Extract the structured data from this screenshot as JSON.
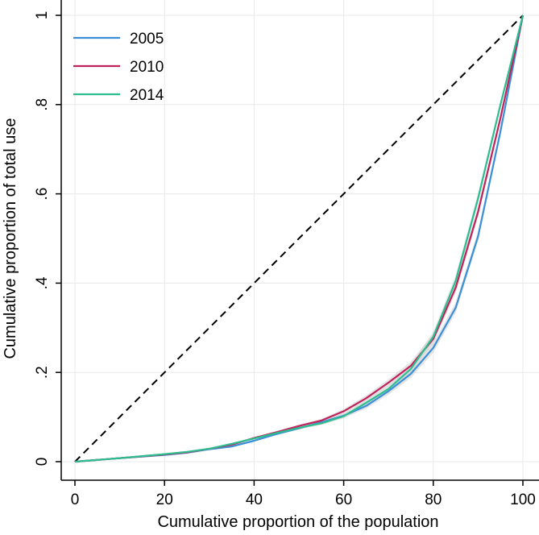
{
  "chart_data": {
    "type": "line",
    "title": "",
    "xlabel": "Cumulative proportion of the population",
    "ylabel": "Cumulative proportion of total use",
    "xlim": [
      0,
      100
    ],
    "ylim": [
      0,
      1
    ],
    "xticks": [
      0,
      20,
      40,
      60,
      80,
      100
    ],
    "xtick_labels": [
      "0",
      "20",
      "40",
      "60",
      "80",
      "100"
    ],
    "yticks": [
      0,
      0.2,
      0.4,
      0.6,
      0.8,
      1
    ],
    "ytick_labels": [
      "0",
      ".2",
      ".4",
      ".6",
      ".8",
      "1"
    ],
    "grid": true,
    "legend_position": "top-left",
    "equality_line": {
      "x": [
        0,
        100
      ],
      "y": [
        0,
        1
      ],
      "color": "#000000",
      "style": "dashed"
    },
    "confidence_band_color": "#cfcfcf",
    "series": [
      {
        "name": "2005",
        "color": "#3a8fd8",
        "x": [
          0,
          10,
          20,
          25,
          30,
          35,
          40,
          45,
          50,
          55,
          60,
          65,
          70,
          75,
          80,
          85,
          90,
          95,
          100
        ],
        "y": [
          0,
          0.008,
          0.015,
          0.02,
          0.028,
          0.034,
          0.047,
          0.062,
          0.075,
          0.088,
          0.103,
          0.125,
          0.158,
          0.197,
          0.255,
          0.345,
          0.505,
          0.74,
          1.0
        ]
      },
      {
        "name": "2010",
        "color": "#c0235b",
        "x": [
          0,
          10,
          20,
          25,
          30,
          35,
          40,
          45,
          50,
          55,
          60,
          65,
          70,
          75,
          80,
          85,
          90,
          95,
          100
        ],
        "y": [
          0,
          0.008,
          0.016,
          0.021,
          0.029,
          0.038,
          0.053,
          0.066,
          0.08,
          0.092,
          0.113,
          0.142,
          0.177,
          0.215,
          0.275,
          0.39,
          0.56,
          0.77,
          1.0
        ]
      },
      {
        "name": "2014",
        "color": "#2dbd8f",
        "x": [
          0,
          10,
          20,
          25,
          30,
          35,
          40,
          45,
          50,
          55,
          60,
          65,
          70,
          75,
          80,
          85,
          90,
          95,
          100
        ],
        "y": [
          0,
          0.008,
          0.017,
          0.022,
          0.029,
          0.04,
          0.052,
          0.064,
          0.076,
          0.086,
          0.102,
          0.132,
          0.163,
          0.208,
          0.28,
          0.405,
          0.59,
          0.8,
          1.0
        ]
      }
    ]
  }
}
